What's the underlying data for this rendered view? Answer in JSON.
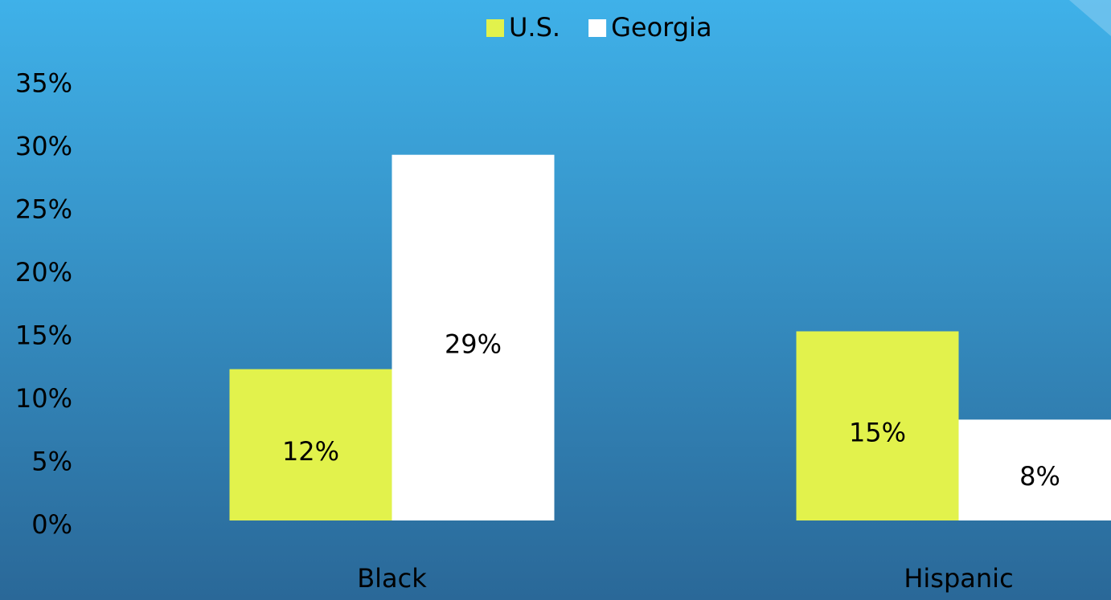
{
  "chart_data": {
    "type": "bar",
    "categories": [
      "Black",
      "Hispanic"
    ],
    "series": [
      {
        "name": "U.S.",
        "color": "#e2f24c",
        "values": [
          12,
          15
        ],
        "value_labels": [
          "12%",
          "15%"
        ]
      },
      {
        "name": "Georgia",
        "color": "#ffffff",
        "values": [
          29,
          8
        ],
        "value_labels": [
          "29%",
          "8%"
        ]
      }
    ],
    "ylim": [
      0,
      35
    ],
    "yticks": [
      {
        "value": 0,
        "label": "0%"
      },
      {
        "value": 5,
        "label": "5%"
      },
      {
        "value": 10,
        "label": "10%"
      },
      {
        "value": 15,
        "label": "15%"
      },
      {
        "value": 20,
        "label": "20%"
      },
      {
        "value": 25,
        "label": "25%"
      },
      {
        "value": 30,
        "label": "30%"
      },
      {
        "value": 35,
        "label": "35%"
      }
    ],
    "grid": false,
    "legend": "top"
  }
}
